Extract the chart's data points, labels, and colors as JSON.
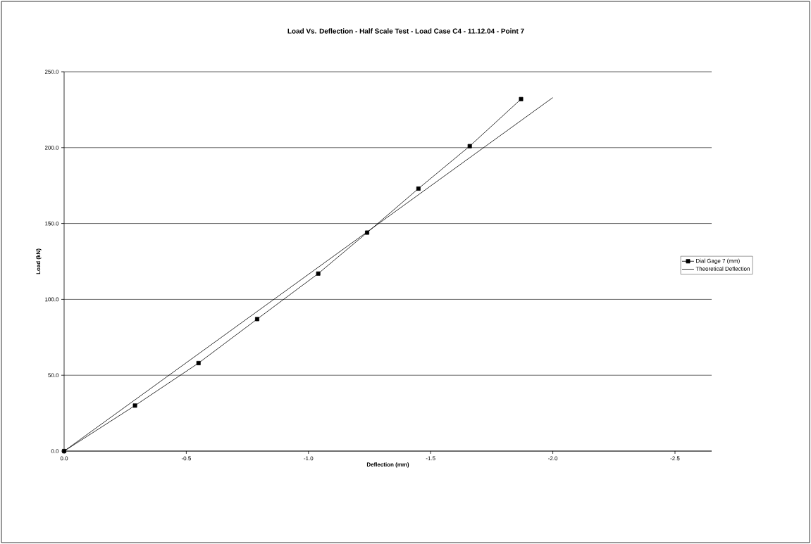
{
  "chart_data": {
    "type": "line",
    "title": "Load Vs. Deflection - Half Scale Test  - Load Case C4 - 11.12.04 - Point 7",
    "xlabel": "Deflection (mm)",
    "ylabel": "Load (kN)",
    "series": [
      {
        "name": "Dial Gage 7 (mm)",
        "color": "#000000",
        "marker": "square",
        "x": [
          0,
          -0.29,
          -0.55,
          -0.79,
          -1.04,
          -1.24,
          -1.45,
          -1.66,
          -1.87
        ],
        "values": [
          0,
          30,
          58,
          87,
          117,
          144,
          173,
          201,
          232
        ]
      },
      {
        "name": "Theoretical Deflection",
        "color": "#000000",
        "marker": "none",
        "x": [
          0,
          -2.0
        ],
        "values": [
          0,
          233
        ]
      }
    ],
    "xlim": [
      0,
      -2.65
    ],
    "ylim": [
      0,
      250
    ],
    "xticks": [
      {
        "value": 0,
        "label": "0.0"
      },
      {
        "value": -0.5,
        "label": "-0.5"
      },
      {
        "value": -1.0,
        "label": "-1.0"
      },
      {
        "value": -1.5,
        "label": "-1.5"
      },
      {
        "value": -2.0,
        "label": "-2.0"
      },
      {
        "value": -2.5,
        "label": "-2.5"
      }
    ],
    "yticks": [
      {
        "value": 0,
        "label": "0.0"
      },
      {
        "value": 50,
        "label": "50.0"
      },
      {
        "value": 100,
        "label": "100.0"
      },
      {
        "value": 150,
        "label": "150.0"
      },
      {
        "value": 200,
        "label": "200.0"
      },
      {
        "value": 250,
        "label": "250.0"
      }
    ],
    "grid": "y",
    "legend": "right",
    "line_style": "solid"
  }
}
